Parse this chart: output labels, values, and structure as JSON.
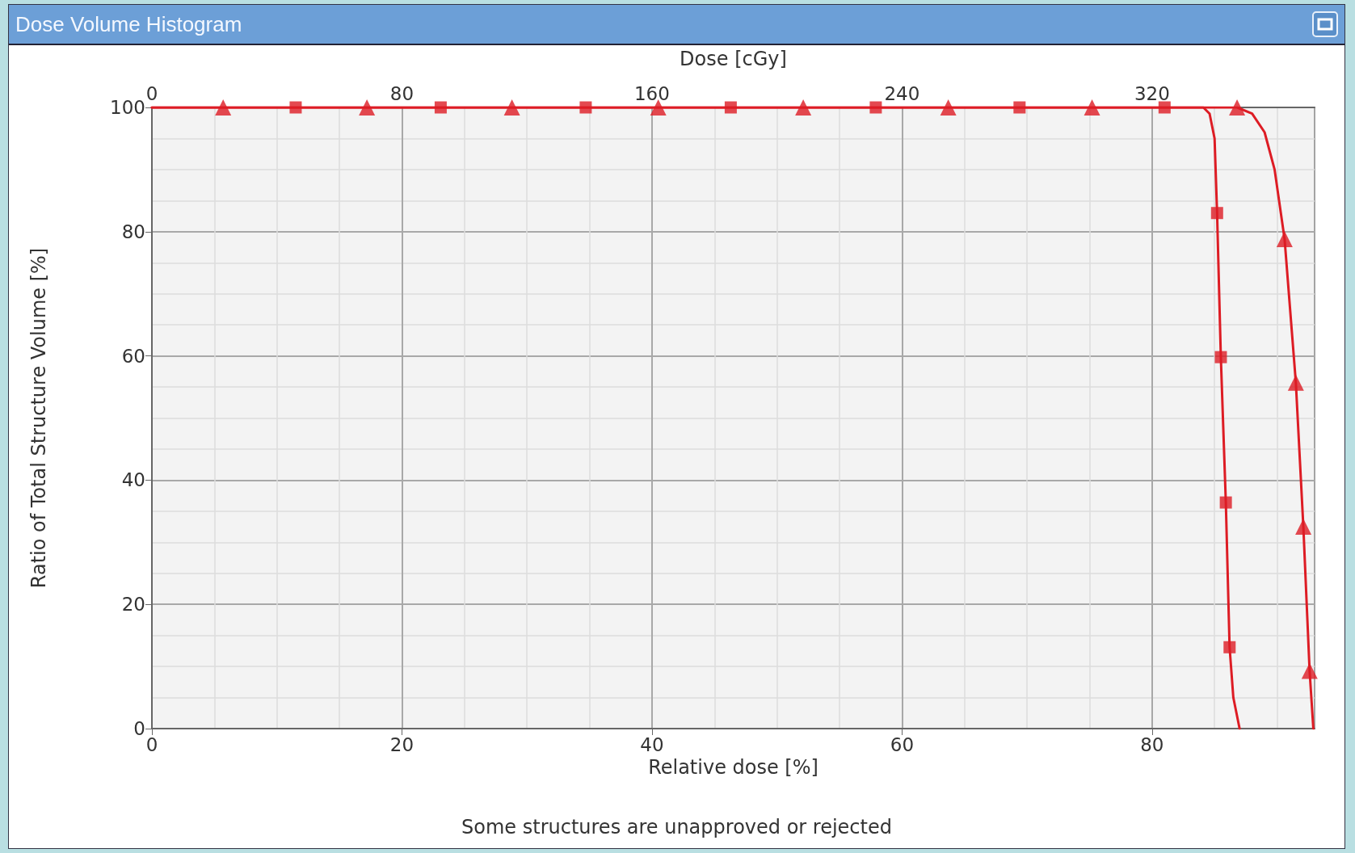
{
  "chart_data": {
    "type": "line",
    "title": "Dose Volume Histogram",
    "xlabel": "Relative dose [%]",
    "ylabel": "Ratio of Total Structure Volume [%]",
    "x2label": "Dose [cGy]",
    "xlim": [
      0,
      93
    ],
    "xticks": [
      0,
      20,
      40,
      60,
      80
    ],
    "x2lim": [
      0,
      372
    ],
    "x2ticks": [
      0,
      80,
      160,
      240,
      320
    ],
    "ylim": [
      0,
      100
    ],
    "yticks": [
      0,
      20,
      40,
      60,
      80,
      100
    ],
    "grid": true,
    "series": [
      {
        "type": "line",
        "color": "#dd1c24",
        "marker": "none",
        "line_style": "solid",
        "x": [
          0,
          84.1,
          84.6,
          85.0,
          85.2,
          85.5,
          85.9,
          86.2,
          86.5,
          87.0
        ],
        "values": [
          100,
          100,
          99,
          95,
          83,
          59.8,
          36.4,
          13.1,
          5,
          0
        ]
      },
      {
        "type": "line",
        "color": "#dd1c24",
        "marker": "none",
        "line_style": "solid",
        "x": [
          0,
          86.8,
          88.0,
          89.0,
          89.8,
          90.6,
          91.5,
          92.1,
          92.6,
          92.9
        ],
        "values": [
          100,
          100,
          99,
          96,
          90,
          78.8,
          55.7,
          32.5,
          9.3,
          0
        ]
      },
      {
        "type": "scatter",
        "color": "#dd1c24",
        "marker": "square",
        "x": [
          11.5,
          23.1,
          34.7,
          46.3,
          57.9,
          69.4,
          81.0,
          85.2,
          85.5,
          85.9,
          86.2
        ],
        "values": [
          100,
          100,
          100,
          100,
          100,
          100,
          100,
          83,
          59.8,
          36.4,
          13.1
        ]
      },
      {
        "type": "scatter",
        "color": "#dd1c24",
        "marker": "triangle",
        "x": [
          5.7,
          17.2,
          28.8,
          40.5,
          52.1,
          63.7,
          75.2,
          86.8,
          90.6,
          91.5,
          92.1,
          92.6
        ],
        "values": [
          100,
          100,
          100,
          100,
          100,
          100,
          100,
          100,
          78.8,
          55.7,
          32.5,
          9.3
        ]
      }
    ],
    "annotations": [
      "Some structures are unapproved or rejected"
    ]
  }
}
